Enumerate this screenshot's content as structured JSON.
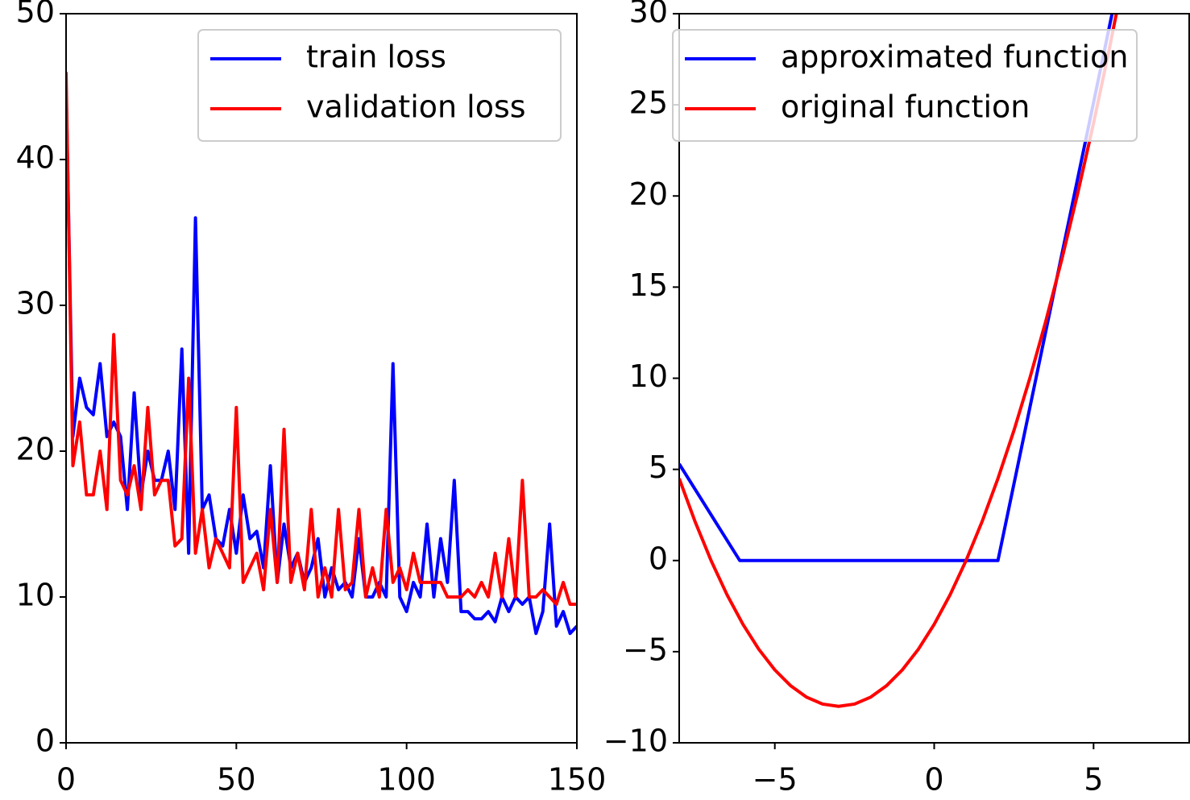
{
  "chart_data": [
    {
      "type": "line",
      "x": [
        0,
        2,
        4,
        6,
        8,
        10,
        12,
        14,
        16,
        18,
        20,
        22,
        24,
        26,
        28,
        30,
        32,
        34,
        36,
        38,
        40,
        42,
        44,
        46,
        48,
        50,
        52,
        54,
        56,
        58,
        60,
        62,
        64,
        66,
        68,
        70,
        72,
        74,
        76,
        78,
        80,
        82,
        84,
        86,
        88,
        90,
        92,
        94,
        96,
        98,
        100,
        102,
        104,
        106,
        108,
        110,
        112,
        114,
        116,
        118,
        120,
        122,
        124,
        126,
        128,
        130,
        132,
        134,
        136,
        138,
        140,
        142,
        144,
        146,
        148,
        150
      ],
      "xlim": [
        0,
        150
      ],
      "xticks": [
        0,
        50,
        100,
        150
      ],
      "ylim": [
        0,
        50
      ],
      "yticks": [
        0,
        10,
        20,
        30,
        40,
        50
      ],
      "legend": "upper right",
      "series": [
        {
          "name": "train loss",
          "color": "#0000ff",
          "values": [
            45,
            21,
            25,
            23,
            22.5,
            26,
            21,
            22,
            21,
            16,
            24,
            17,
            20,
            18,
            18,
            20,
            16,
            27,
            13,
            36,
            16,
            17,
            14,
            13.5,
            16,
            13,
            17,
            14,
            14.5,
            12,
            19,
            11,
            15,
            12,
            13,
            11,
            12,
            14,
            10,
            12,
            10.5,
            11,
            10,
            14,
            10,
            10,
            11,
            10,
            26,
            10,
            9,
            11,
            10,
            15,
            10,
            14,
            11,
            18,
            9,
            9,
            8.5,
            8.5,
            9,
            8.3,
            10,
            9,
            10,
            9.5,
            10,
            7.5,
            9,
            15,
            8,
            9,
            7.5,
            8
          ]
        },
        {
          "name": "validation loss",
          "color": "#ff0000",
          "values": [
            46,
            19,
            22,
            17,
            17,
            20,
            16,
            28,
            18,
            17,
            19,
            16,
            23,
            17,
            18,
            18,
            13.5,
            14,
            25,
            13,
            16,
            12,
            14,
            13,
            12,
            23,
            11,
            12,
            13,
            10.5,
            16,
            11,
            21.5,
            11,
            13,
            10.5,
            16,
            10,
            12,
            10,
            16,
            10.5,
            11,
            16,
            10,
            12,
            10,
            16,
            11,
            12,
            10.5,
            13,
            11,
            11,
            11,
            11,
            10,
            10,
            10,
            10.5,
            10,
            11,
            10,
            13,
            10,
            14,
            10,
            18,
            10,
            10,
            10.5,
            10,
            9.5,
            11,
            9.5,
            9.5
          ]
        }
      ]
    },
    {
      "type": "line",
      "xlim": [
        -8,
        8
      ],
      "xticks": [
        {
          "value": -5,
          "label": "−5"
        },
        0,
        5
      ],
      "ylim": [
        -10,
        30
      ],
      "yticks": [
        {
          "value": -10,
          "label": "−10"
        },
        {
          "value": -5,
          "label": "−5"
        },
        0,
        5,
        10,
        15,
        20,
        25,
        30
      ],
      "legend": "upper left",
      "series": [
        {
          "name": "approximated function",
          "color": "#0000ff",
          "x": [
            -8,
            -6.1,
            2,
            5.7
          ],
          "values": [
            5.3,
            0,
            0,
            31
          ]
        },
        {
          "name": "original function",
          "color": "#ff0000",
          "x": [
            -8,
            -7.5,
            -7,
            -6.5,
            -6,
            -5.5,
            -5,
            -4.5,
            -4,
            -3.5,
            -3,
            -2.5,
            -2,
            -1.5,
            -1,
            -0.5,
            0,
            0.5,
            1,
            1.5,
            2,
            2.5,
            3,
            3.5,
            4,
            4.5,
            5,
            5.5,
            6
          ],
          "values": [
            4.5,
            2.125,
            0,
            -1.875,
            -3.5,
            -4.875,
            -6,
            -6.875,
            -7.5,
            -7.875,
            -8,
            -7.875,
            -7.5,
            -6.875,
            -6,
            -4.875,
            -3.5,
            -1.875,
            0,
            2.125,
            4.5,
            7.125,
            10,
            13.125,
            16.5,
            20.125,
            24,
            28.125,
            32.5
          ]
        }
      ]
    }
  ]
}
